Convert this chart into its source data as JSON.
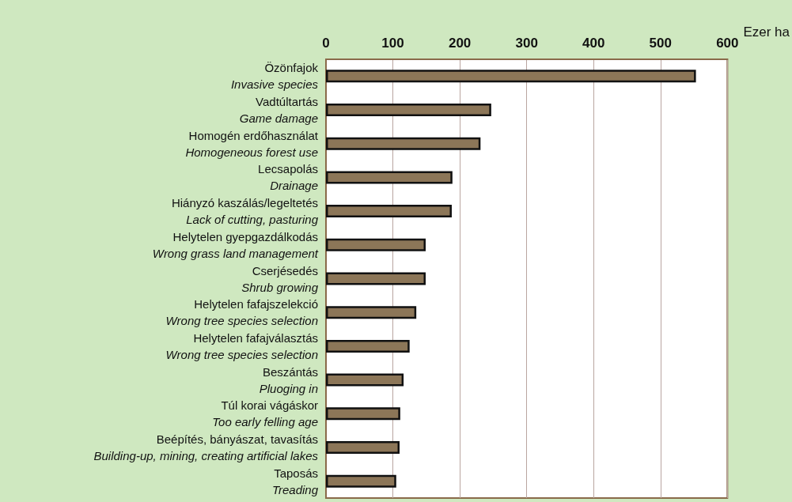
{
  "chart_data": {
    "type": "bar",
    "orientation": "horizontal",
    "xlabel": "Ezer ha",
    "categories": [
      "Özönfajok\nInvasive species",
      "Vadtúltartás\nGame damage",
      "Homogén erdőhasználat\nHomogeneous forest use",
      "Lecsapolás\nDrainage",
      "Hiányzó kaszálás/legeltetés\nLack of cutting, pasturing",
      "Helytelen gyepgazdálkodás\nWrong grass land management",
      "Cserjésedés\nShrub growing",
      "Helytelen fafajszelekció\nWrong tree species selection",
      "Helytelen fafajválasztás\nWrong tree species selection",
      "Beszántás\nPluoging in",
      "Túl korai vágáskor\nToo early felling age",
      "Beépítés, bányászat, tavasítás\nBuilding-up, mining, creating artificial lakes",
      "Taposás\nTreading"
    ],
    "values": [
      553,
      247,
      231,
      189,
      188,
      149,
      149,
      135,
      125,
      116,
      111,
      110,
      105
    ],
    "color": "#8c7658",
    "xlim": [
      0,
      600
    ],
    "xticks": [
      0,
      100,
      200,
      300,
      400,
      500,
      600
    ],
    "grid": "x"
  }
}
